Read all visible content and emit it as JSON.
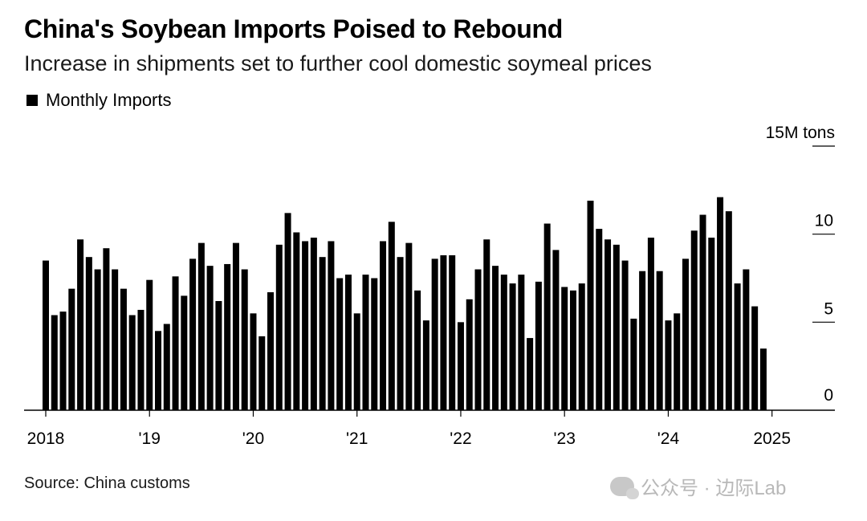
{
  "header": {
    "title": "China's Soybean Imports Poised to Rebound",
    "subtitle": "Increase in shipments set to further cool domestic soymeal prices"
  },
  "legend": {
    "label": "Monthly Imports",
    "color": "#000000"
  },
  "source": "Source: China customs",
  "watermark": {
    "text": "公众号 · 边际Lab",
    "icon": "wechat-icon"
  },
  "chart_data": {
    "type": "bar",
    "title": "China's Soybean Imports Poised to Rebound",
    "subtitle": "Increase in shipments set to further cool domestic soymeal prices",
    "ylabel": "15M tons",
    "unit": "M tons",
    "ylim": [
      0,
      15
    ],
    "yticks": [
      0,
      5,
      10,
      15
    ],
    "ytick_labels": [
      "0",
      "5",
      "10",
      "15M tons"
    ],
    "xticks": [
      {
        "label": "2018",
        "index": 0
      },
      {
        "label": "'19",
        "index": 12
      },
      {
        "label": "'20",
        "index": 24
      },
      {
        "label": "'21",
        "index": 36
      },
      {
        "label": "'22",
        "index": 48
      },
      {
        "label": "'23",
        "index": 60
      },
      {
        "label": "'24",
        "index": 72
      },
      {
        "label": "2025",
        "index": 84
      }
    ],
    "grid": false,
    "legend_position": "top-left",
    "series": [
      {
        "name": "Monthly Imports",
        "color": "#000000",
        "start": "2018-01",
        "values": [
          8.5,
          5.4,
          5.6,
          6.9,
          9.7,
          8.7,
          8.0,
          9.2,
          8.0,
          6.9,
          5.4,
          5.7,
          7.4,
          4.5,
          4.9,
          7.6,
          6.5,
          8.6,
          9.5,
          8.2,
          6.2,
          8.3,
          9.5,
          8.0,
          5.5,
          4.2,
          6.7,
          9.4,
          11.2,
          10.1,
          9.6,
          9.8,
          8.7,
          9.6,
          7.5,
          7.7,
          5.5,
          7.7,
          7.5,
          9.6,
          10.7,
          8.7,
          9.5,
          6.8,
          5.1,
          8.6,
          8.8,
          8.8,
          5.0,
          6.3,
          8.0,
          9.7,
          8.2,
          7.7,
          7.2,
          7.7,
          4.1,
          7.3,
          10.6,
          9.1,
          7.0,
          6.8,
          7.2,
          11.9,
          10.3,
          9.7,
          9.4,
          8.5,
          5.2,
          7.9,
          9.8,
          7.9,
          5.1,
          5.5,
          8.6,
          10.2,
          11.1,
          9.8,
          12.1,
          11.3,
          7.2,
          8.0,
          5.9,
          3.5
        ]
      }
    ]
  }
}
